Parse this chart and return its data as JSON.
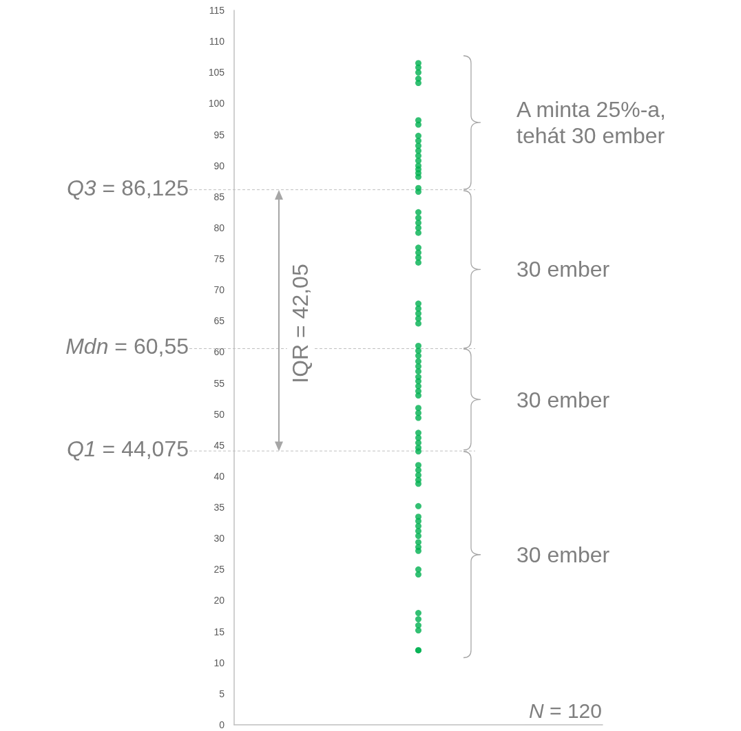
{
  "chart_data": {
    "type": "scatter",
    "categories": [
      null
    ],
    "series": [
      {
        "color": "#00b050",
        "x": [
          null,
          null,
          null,
          null,
          null,
          null,
          null,
          null,
          null,
          null,
          null,
          null,
          null,
          null,
          null,
          null,
          null,
          null,
          null,
          null,
          null,
          null,
          null,
          null,
          null,
          null,
          null,
          null,
          null,
          null,
          null,
          null,
          null,
          null,
          null,
          null,
          null,
          null,
          null,
          null,
          null,
          null,
          null,
          null,
          null,
          null,
          null,
          null,
          null,
          null,
          null,
          null,
          null,
          null,
          null,
          null,
          null,
          null,
          null,
          null,
          null,
          null,
          null,
          null,
          null,
          null,
          null,
          null,
          null,
          null,
          null,
          null,
          null,
          null
        ],
        "values": [
          106.5,
          105.8,
          105,
          104,
          103.3,
          97.3,
          96.6,
          94.8,
          94,
          93.2,
          92.4,
          91.6,
          90.8,
          90,
          89.4,
          88.8,
          88.2,
          86.4,
          85.8,
          82.5,
          81.6,
          80.8,
          80,
          79.2,
          76.8,
          76,
          75.2,
          74.4,
          67.8,
          67,
          66.2,
          65.4,
          64.6,
          61,
          60.2,
          59.4,
          58.5,
          57.7,
          56.9,
          56,
          55.3,
          54.5,
          53.7,
          53,
          51,
          50.2,
          49.4,
          47,
          46.2,
          45.4,
          44.6,
          44,
          41.8,
          41,
          40.2,
          39.4,
          38.8,
          35.2,
          33.5,
          32.8,
          32,
          31.2,
          30.4,
          29.4,
          28.6,
          28,
          25,
          24.2,
          18,
          17,
          16,
          15.2,
          12,
          12
        ]
      }
    ],
    "ylim": [
      0,
      115
    ],
    "yticks": [
      0,
      5,
      10,
      15,
      20,
      25,
      30,
      35,
      40,
      45,
      50,
      55,
      60,
      65,
      70,
      75,
      80,
      85,
      90,
      95,
      100,
      105,
      110,
      115
    ],
    "grid": false,
    "marker": "circle",
    "ref_lines": [
      {
        "axis": "y",
        "value": 86.125,
        "label": "Q3 = 86,125",
        "color": "#bfbfbf",
        "line_style": "dashed"
      },
      {
        "axis": "y",
        "value": 60.55,
        "label": "Mdn = 60,55",
        "color": "#bfbfbf",
        "line_style": "dashed"
      },
      {
        "axis": "y",
        "value": 44.075,
        "label": "Q1 = 44,075",
        "color": "#bfbfbf",
        "line_style": "dashed"
      }
    ],
    "annotations": [
      "IQR = 42,05",
      "A minta 25%-a, tehát 30 ember",
      "30 ember",
      "30 ember",
      "30 ember",
      "N = 120"
    ]
  }
}
